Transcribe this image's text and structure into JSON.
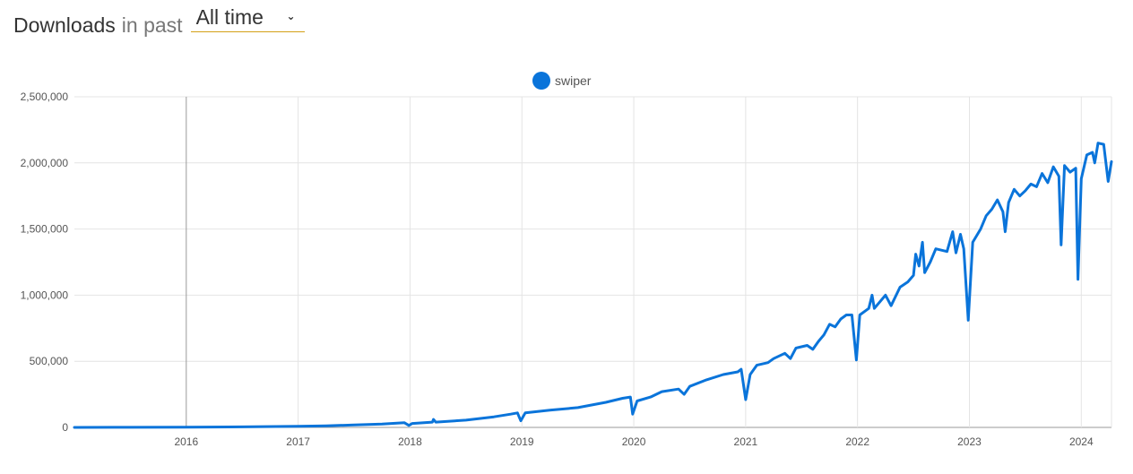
{
  "header": {
    "title": "Downloads",
    "subtitle": "in past",
    "period_value": "All time",
    "period_icon": "chevron-down-icon"
  },
  "colors": {
    "series": "#0a74da",
    "grid": "#e4e4e4",
    "accent_underline": "#d4a017"
  },
  "chart_data": {
    "type": "line",
    "legend": {
      "position": "top-center"
    },
    "grid": true,
    "xlim": [
      2015.0,
      2024.27
    ],
    "ylim": [
      0,
      2500000
    ],
    "x_ticks": [
      2016,
      2017,
      2018,
      2019,
      2020,
      2021,
      2022,
      2023,
      2024
    ],
    "y_ticks": [
      0,
      500000,
      1000000,
      1500000,
      2000000,
      2500000
    ],
    "y_tick_labels": [
      "0",
      "500,000",
      "1,000,000",
      "1,500,000",
      "2,000,000",
      "2,500,000"
    ],
    "marker_x": 2016,
    "series": [
      {
        "name": "swiper",
        "color": "#0a74da",
        "points": [
          [
            2015.0,
            0
          ],
          [
            2015.5,
            500
          ],
          [
            2016.0,
            1500
          ],
          [
            2016.5,
            4000
          ],
          [
            2017.0,
            8000
          ],
          [
            2017.25,
            12000
          ],
          [
            2017.5,
            18000
          ],
          [
            2017.75,
            25000
          ],
          [
            2017.95,
            35000
          ],
          [
            2017.99,
            15000
          ],
          [
            2018.02,
            30000
          ],
          [
            2018.2,
            40000
          ],
          [
            2018.21,
            60000
          ],
          [
            2018.23,
            40000
          ],
          [
            2018.5,
            55000
          ],
          [
            2018.75,
            80000
          ],
          [
            2018.9,
            100000
          ],
          [
            2018.96,
            110000
          ],
          [
            2018.99,
            50000
          ],
          [
            2019.03,
            110000
          ],
          [
            2019.25,
            130000
          ],
          [
            2019.5,
            150000
          ],
          [
            2019.75,
            190000
          ],
          [
            2019.9,
            220000
          ],
          [
            2019.97,
            230000
          ],
          [
            2019.99,
            100000
          ],
          [
            2020.03,
            200000
          ],
          [
            2020.15,
            230000
          ],
          [
            2020.25,
            270000
          ],
          [
            2020.4,
            290000
          ],
          [
            2020.45,
            250000
          ],
          [
            2020.5,
            310000
          ],
          [
            2020.65,
            360000
          ],
          [
            2020.8,
            400000
          ],
          [
            2020.93,
            420000
          ],
          [
            2020.96,
            440000
          ],
          [
            2021.0,
            210000
          ],
          [
            2021.04,
            400000
          ],
          [
            2021.1,
            470000
          ],
          [
            2021.2,
            490000
          ],
          [
            2021.25,
            520000
          ],
          [
            2021.35,
            560000
          ],
          [
            2021.4,
            520000
          ],
          [
            2021.45,
            600000
          ],
          [
            2021.55,
            620000
          ],
          [
            2021.6,
            590000
          ],
          [
            2021.65,
            650000
          ],
          [
            2021.7,
            700000
          ],
          [
            2021.75,
            780000
          ],
          [
            2021.8,
            760000
          ],
          [
            2021.85,
            820000
          ],
          [
            2021.9,
            850000
          ],
          [
            2021.95,
            850000
          ],
          [
            2021.99,
            510000
          ],
          [
            2022.02,
            850000
          ],
          [
            2022.1,
            900000
          ],
          [
            2022.13,
            1000000
          ],
          [
            2022.15,
            900000
          ],
          [
            2022.25,
            1000000
          ],
          [
            2022.3,
            920000
          ],
          [
            2022.38,
            1060000
          ],
          [
            2022.45,
            1100000
          ],
          [
            2022.5,
            1150000
          ],
          [
            2022.52,
            1310000
          ],
          [
            2022.55,
            1220000
          ],
          [
            2022.58,
            1400000
          ],
          [
            2022.6,
            1170000
          ],
          [
            2022.65,
            1250000
          ],
          [
            2022.7,
            1350000
          ],
          [
            2022.8,
            1330000
          ],
          [
            2022.85,
            1480000
          ],
          [
            2022.88,
            1320000
          ],
          [
            2022.92,
            1460000
          ],
          [
            2022.95,
            1350000
          ],
          [
            2022.99,
            810000
          ],
          [
            2023.03,
            1400000
          ],
          [
            2023.1,
            1500000
          ],
          [
            2023.15,
            1600000
          ],
          [
            2023.2,
            1650000
          ],
          [
            2023.25,
            1720000
          ],
          [
            2023.3,
            1630000
          ],
          [
            2023.32,
            1480000
          ],
          [
            2023.35,
            1700000
          ],
          [
            2023.4,
            1800000
          ],
          [
            2023.45,
            1750000
          ],
          [
            2023.5,
            1790000
          ],
          [
            2023.55,
            1840000
          ],
          [
            2023.6,
            1820000
          ],
          [
            2023.65,
            1920000
          ],
          [
            2023.7,
            1850000
          ],
          [
            2023.75,
            1970000
          ],
          [
            2023.8,
            1900000
          ],
          [
            2023.82,
            1380000
          ],
          [
            2023.85,
            1980000
          ],
          [
            2023.9,
            1930000
          ],
          [
            2023.95,
            1960000
          ],
          [
            2023.97,
            1120000
          ],
          [
            2024.0,
            1880000
          ],
          [
            2024.05,
            2060000
          ],
          [
            2024.1,
            2080000
          ],
          [
            2024.12,
            2000000
          ],
          [
            2024.15,
            2150000
          ],
          [
            2024.2,
            2140000
          ],
          [
            2024.24,
            1860000
          ],
          [
            2024.27,
            2010000
          ]
        ]
      }
    ]
  }
}
